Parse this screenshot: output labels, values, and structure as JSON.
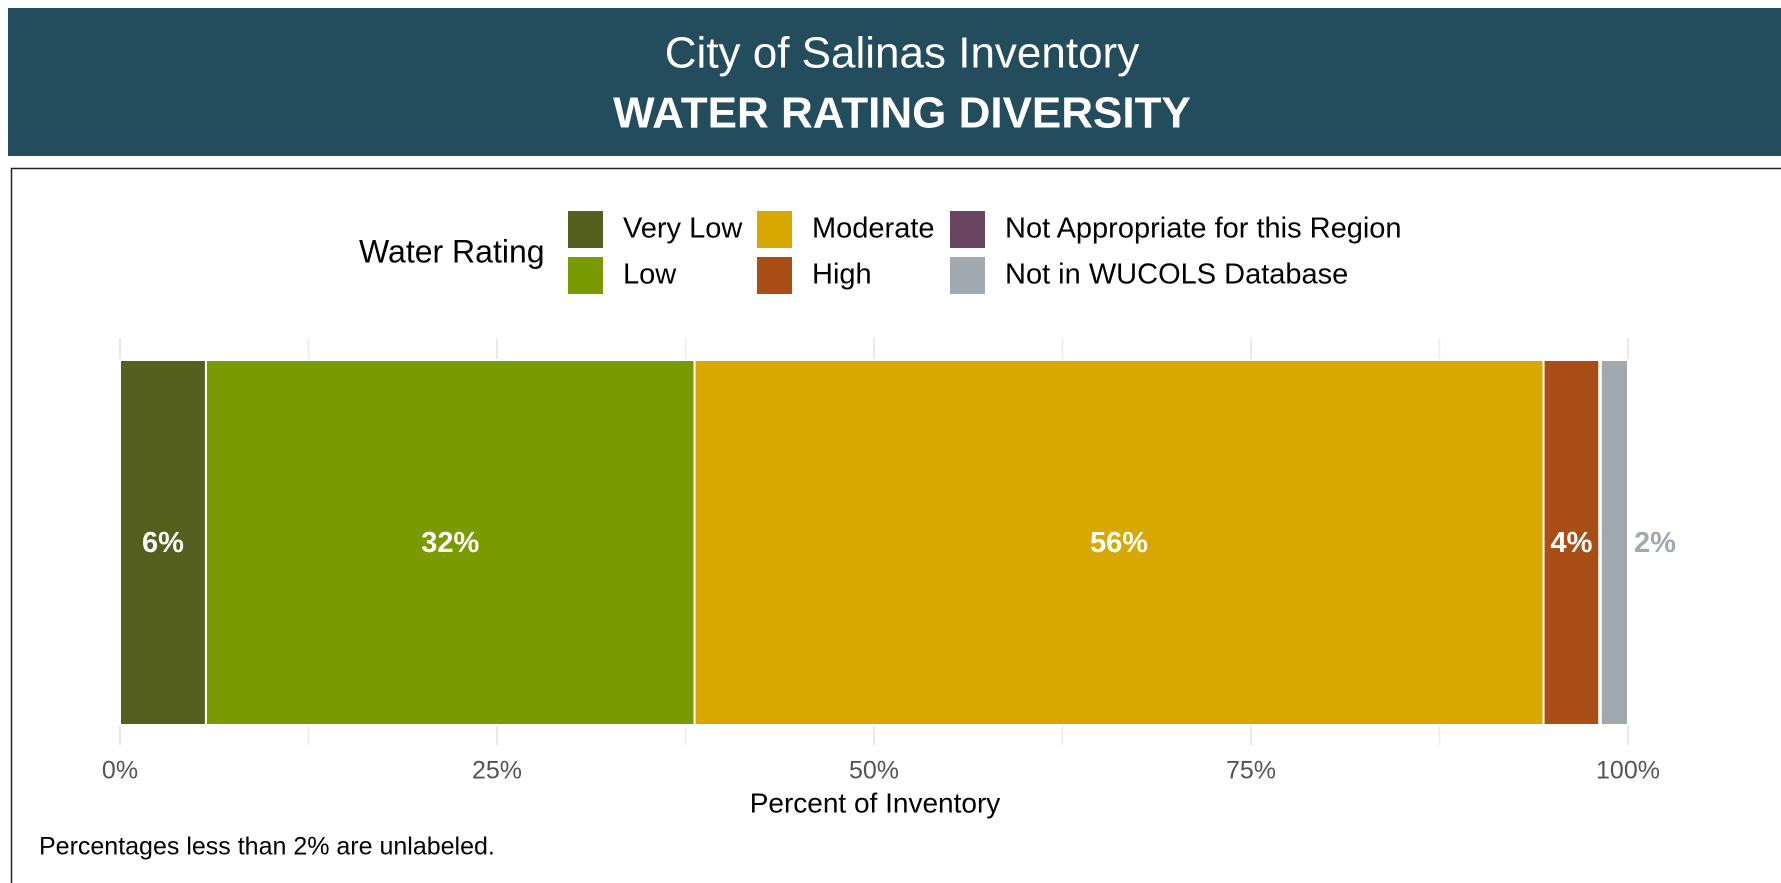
{
  "chart_data": {
    "type": "stacked_bar_horizontal",
    "subtitle": "City of Salinas Inventory",
    "title": "WATER RATING DIVERSITY",
    "legend_title": "Water Rating",
    "x_label": "Percent of Inventory",
    "note": "Percentages less than 2% are unlabeled.",
    "series": [
      {
        "name": "Very Low",
        "color": "#555f1e",
        "values": [
          5.7
        ],
        "value_labels": [
          "6%"
        ]
      },
      {
        "name": "Low",
        "color": "#7a9a01",
        "values": [
          32.4
        ],
        "value_labels": [
          "32%"
        ]
      },
      {
        "name": "Moderate",
        "color": "#d8a800",
        "values": [
          56.3
        ],
        "value_labels": [
          "56%"
        ]
      },
      {
        "name": "High",
        "color": "#a84e16",
        "values": [
          3.7
        ],
        "value_labels": [
          "4%"
        ]
      },
      {
        "name": "Not Appropriate for this Region",
        "color": "#6a4560",
        "values": [
          0.1
        ],
        "value_labels": [
          null
        ]
      },
      {
        "name": "Not in WUCOLS Database",
        "color": "#a2a9ae",
        "values": [
          1.8
        ],
        "value_labels": [
          "2%"
        ]
      }
    ],
    "xlim": [
      0,
      100
    ],
    "xticks": [
      {
        "value": 0,
        "label": "0%"
      },
      {
        "value": 25,
        "label": "25%"
      },
      {
        "value": 50,
        "label": "50%"
      },
      {
        "value": 75,
        "label": "75%"
      },
      {
        "value": 100,
        "label": "100%"
      }
    ],
    "minor_xticks": [
      12.5,
      37.5,
      62.5,
      87.5
    ],
    "grid": true
  }
}
